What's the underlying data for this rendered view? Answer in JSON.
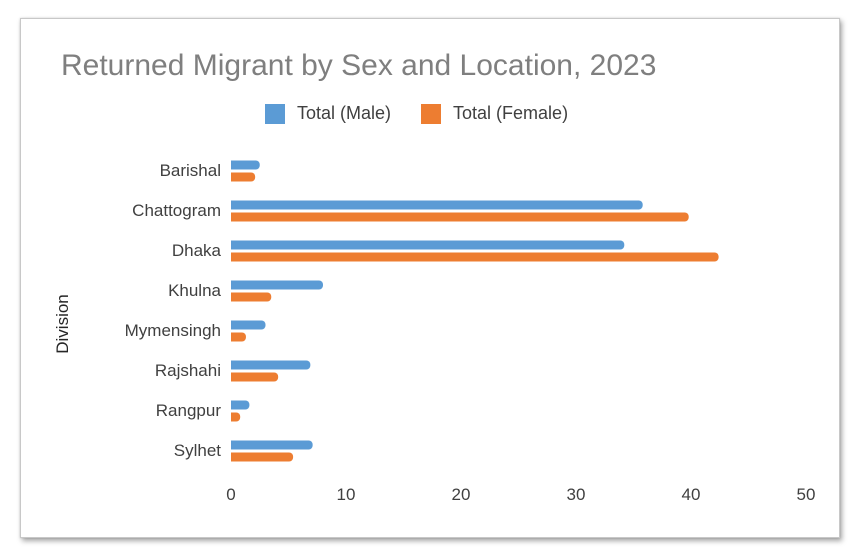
{
  "chart_data": {
    "type": "bar",
    "orientation": "horizontal",
    "title": "Returned Migrant by Sex and Location, 2023",
    "ylabel": "Division",
    "xlabel": "",
    "categories": [
      "Barishal",
      "Chattogram",
      "Dhaka",
      "Khulna",
      "Mymensingh",
      "Rajshahi",
      "Rangpur",
      "Sylhet"
    ],
    "series": [
      {
        "name": "Total (Male)",
        "color": "#5b9bd5",
        "values": [
          2.5,
          35.8,
          34.2,
          8.0,
          3.0,
          6.9,
          1.6,
          7.1
        ]
      },
      {
        "name": "Total (Female)",
        "color": "#ed7d31",
        "values": [
          2.1,
          39.8,
          42.4,
          3.5,
          1.3,
          4.1,
          0.8,
          5.4
        ]
      }
    ],
    "xlim": [
      0,
      50
    ],
    "xticks": [
      0,
      10,
      20,
      30,
      40,
      50
    ],
    "grid": false,
    "legend_position": "top"
  }
}
